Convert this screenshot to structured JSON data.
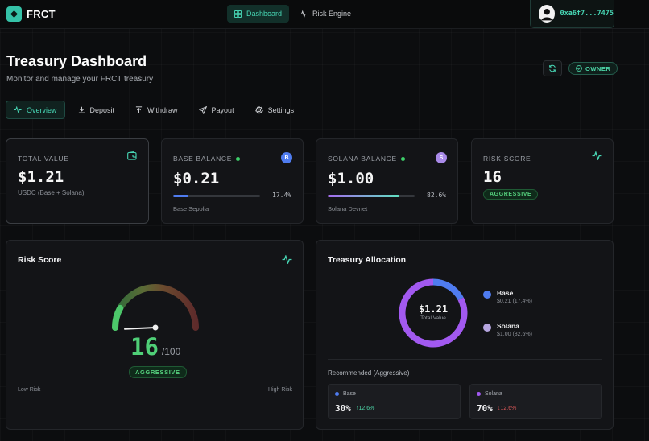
{
  "app": {
    "name": "FRCT",
    "nav": [
      {
        "label": "Dashboard",
        "icon": "grid-icon",
        "active": true
      },
      {
        "label": "Risk Engine",
        "icon": "activity-icon",
        "active": false
      }
    ],
    "wallet_address": "0xa6f7...7475"
  },
  "header": {
    "title": "Treasury Dashboard",
    "subtitle": "Monitor and manage your FRCT treasury",
    "owner_badge": "OWNER"
  },
  "tabs": [
    {
      "label": "Overview",
      "icon": "activity-icon",
      "active": true
    },
    {
      "label": "Deposit",
      "icon": "download-icon",
      "active": false
    },
    {
      "label": "Withdraw",
      "icon": "upload-icon",
      "active": false
    },
    {
      "label": "Payout",
      "icon": "send-icon",
      "active": false
    },
    {
      "label": "Settings",
      "icon": "gear-icon",
      "active": false
    }
  ],
  "stats": {
    "total": {
      "label": "TOTAL VALUE",
      "value": "$1.21",
      "sub": "USDC (Base + Solana)"
    },
    "base": {
      "label": "BASE BALANCE",
      "value": "$0.21",
      "pct_label": "17.4%",
      "pct": 0.174,
      "network": "Base Sepolia",
      "badge": "B",
      "color": "#4f7cf0"
    },
    "solana": {
      "label": "SOLANA BALANCE",
      "value": "$1.00",
      "pct_label": "82.6%",
      "pct": 0.826,
      "network": "Solana Devnet",
      "badge": "S",
      "color": "#a98ae8"
    },
    "risk": {
      "label": "RISK SCORE",
      "value": "16",
      "level": "AGGRESSIVE"
    }
  },
  "risk_panel": {
    "title": "Risk Score",
    "score": "16",
    "score_max": "/100",
    "score_fraction": 0.16,
    "level": "AGGRESSIVE",
    "low_label": "Low Risk",
    "high_label": "High Risk"
  },
  "allocation": {
    "title": "Treasury Allocation",
    "total_value": "$1.21",
    "total_label": "Total Value",
    "slices": [
      {
        "name": "Base",
        "value_label": "$0.21 (17.4%)",
        "fraction": 0.174,
        "color": "#4f7cf0"
      },
      {
        "name": "Solana",
        "value_label": "$1.00 (82.6%)",
        "fraction": 0.826,
        "color": "#a259f0"
      }
    ],
    "recommended_label": "Recommended (Aggressive)",
    "recommended": [
      {
        "chain": "Base",
        "pct": "30%",
        "delta": "↑12.6%",
        "dot_color": "#4f7cf0",
        "delta_color": "#4dd6a8"
      },
      {
        "chain": "Solana",
        "pct": "70%",
        "delta": "↓12.6%",
        "dot_color": "#a259f0",
        "delta_color": "#e05a5a"
      }
    ]
  }
}
